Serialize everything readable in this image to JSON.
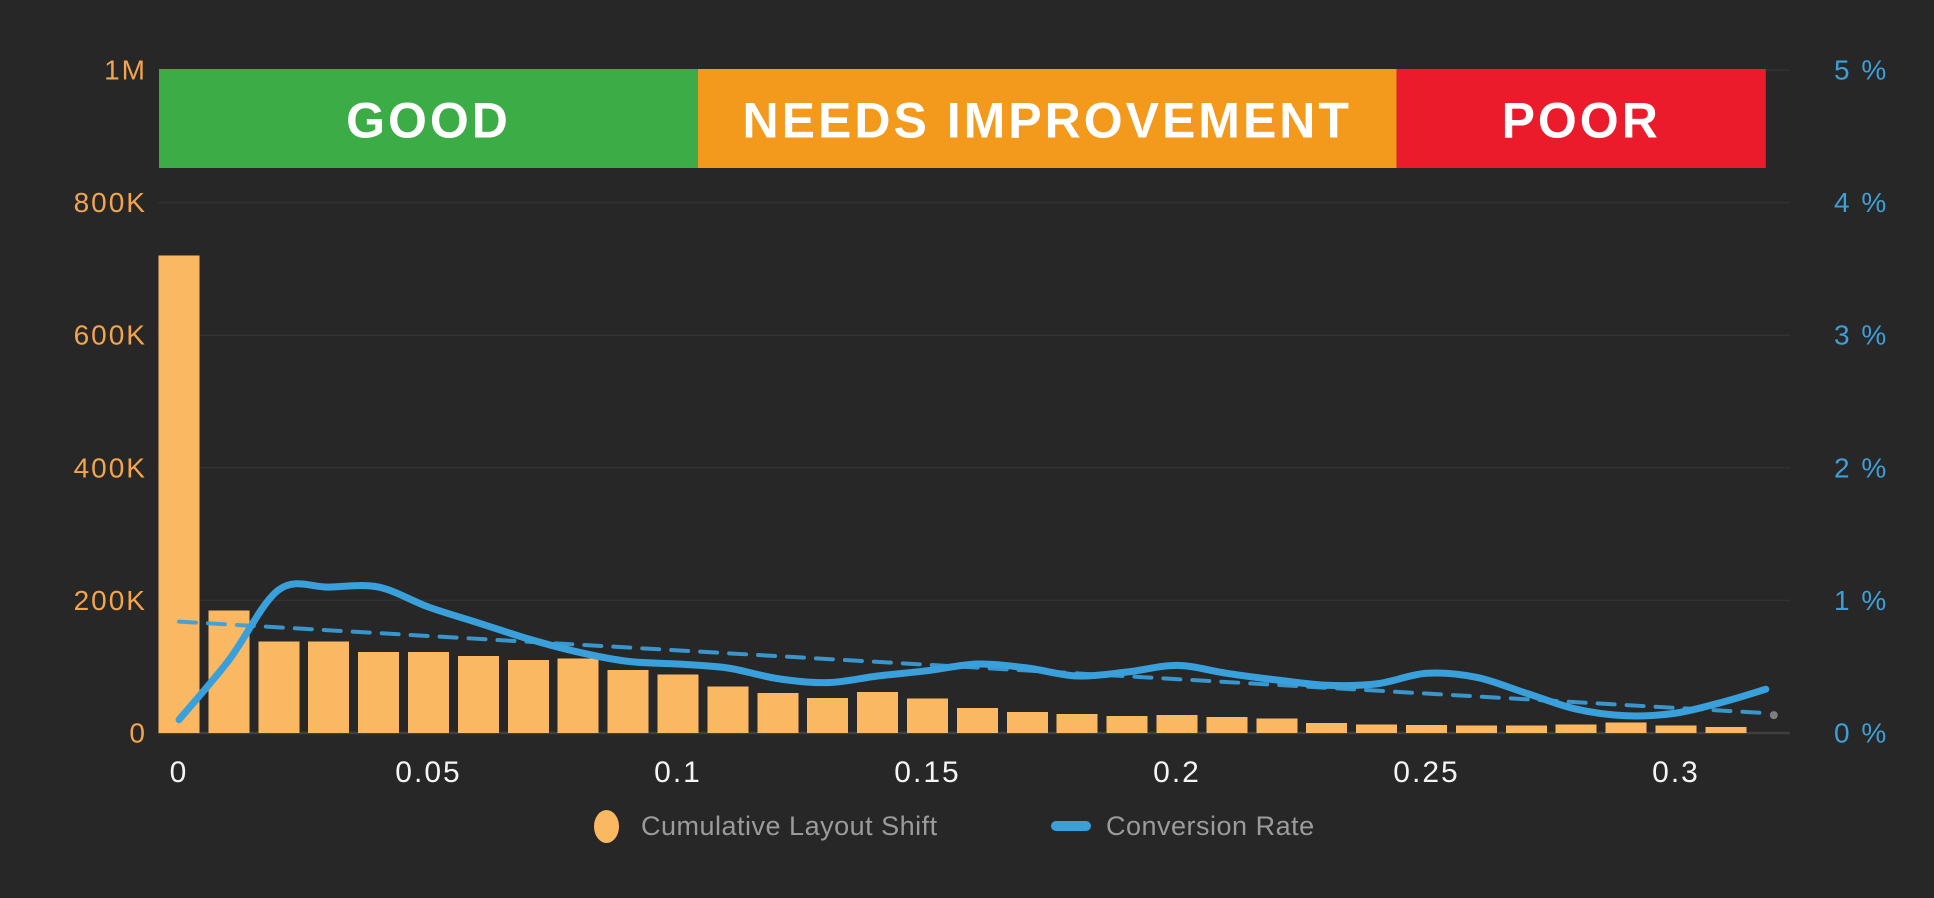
{
  "page": {
    "background": "#272727"
  },
  "chart_data": {
    "type": "bar+line",
    "title": "",
    "x_axis": {
      "label": "",
      "range": [
        -0.004,
        0.318
      ],
      "tick_color": "#F5F5F5",
      "ticks": [
        {
          "value": 0,
          "label": "0"
        },
        {
          "value": 0.05,
          "label": "0.05"
        },
        {
          "value": 0.1,
          "label": "0.1"
        },
        {
          "value": 0.15,
          "label": "0.15"
        },
        {
          "value": 0.2,
          "label": "0.2"
        },
        {
          "value": 0.25,
          "label": "0.25"
        },
        {
          "value": 0.3,
          "label": "0.3"
        }
      ]
    },
    "left_axis": {
      "range": [
        0,
        1000000
      ],
      "tick_color": "#F3A44C",
      "ticks": [
        {
          "value": 0,
          "label": "0"
        },
        {
          "value": 200000,
          "label": "200K"
        },
        {
          "value": 400000,
          "label": "400K"
        },
        {
          "value": 600000,
          "label": "600K"
        },
        {
          "value": 800000,
          "label": "800K"
        },
        {
          "value": 1000000,
          "label": "1M"
        }
      ]
    },
    "right_axis": {
      "range": [
        0,
        5
      ],
      "tick_color": "#3E9FD8",
      "ticks": [
        {
          "value": 0,
          "label": "0 %"
        },
        {
          "value": 1,
          "label": "1 %"
        },
        {
          "value": 2,
          "label": "2 %"
        },
        {
          "value": 3,
          "label": "3 %"
        },
        {
          "value": 4,
          "label": "4 %"
        },
        {
          "value": 5,
          "label": "5 %"
        }
      ]
    },
    "bands": [
      {
        "label": "GOOD",
        "color": "#3CAC47",
        "from": -0.004,
        "to": 0.104
      },
      {
        "label": "NEEDS IMPROVEMENT",
        "color": "#F39A1D",
        "from": 0.104,
        "to": 0.244
      },
      {
        "label": "POOR",
        "color": "#EC1B2B",
        "from": 0.244,
        "to": 0.318
      }
    ],
    "band_text_color": "#FFFFFF",
    "grid": {
      "color": "#323232",
      "baseline_color": "#3F3F3F"
    },
    "series": [
      {
        "name": "Cumulative Layout Shift",
        "type": "bar",
        "axis": "left",
        "color": "#FBB863",
        "x": [
          0,
          0.01,
          0.02,
          0.03,
          0.04,
          0.05,
          0.06,
          0.07,
          0.08,
          0.09,
          0.1,
          0.11,
          0.12,
          0.13,
          0.14,
          0.15,
          0.16,
          0.17,
          0.18,
          0.19,
          0.2,
          0.21,
          0.22,
          0.23,
          0.24,
          0.25,
          0.26,
          0.27,
          0.28,
          0.29,
          0.3,
          0.31
        ],
        "values": [
          720000,
          185000,
          138000,
          138000,
          122000,
          122000,
          116000,
          110000,
          112000,
          95000,
          88000,
          70000,
          60000,
          53000,
          62000,
          52000,
          38000,
          32000,
          29000,
          26000,
          27000,
          24000,
          22000,
          15000,
          13000,
          12000,
          11000,
          11000,
          13000,
          16000,
          11000,
          9000
        ]
      },
      {
        "name": "Conversion Rate",
        "type": "line",
        "axis": "right",
        "color": "#3AA0DB",
        "x": [
          0,
          0.01,
          0.02,
          0.03,
          0.04,
          0.05,
          0.06,
          0.07,
          0.08,
          0.09,
          0.1,
          0.11,
          0.12,
          0.13,
          0.14,
          0.15,
          0.16,
          0.17,
          0.18,
          0.19,
          0.2,
          0.21,
          0.22,
          0.23,
          0.24,
          0.25,
          0.26,
          0.27,
          0.28,
          0.29,
          0.3,
          0.31,
          0.318
        ],
        "values": [
          0.1,
          0.55,
          1.08,
          1.1,
          1.1,
          0.95,
          0.83,
          0.71,
          0.61,
          0.54,
          0.52,
          0.49,
          0.41,
          0.38,
          0.43,
          0.47,
          0.52,
          0.49,
          0.43,
          0.46,
          0.51,
          0.45,
          0.4,
          0.36,
          0.37,
          0.45,
          0.42,
          0.3,
          0.18,
          0.13,
          0.15,
          0.24,
          0.33
        ]
      },
      {
        "name": "Conversion Rate trend",
        "type": "dashed-line",
        "axis": "right",
        "color": "#3AA0DB",
        "x": [
          0,
          0.318
        ],
        "values": [
          0.84,
          0.15
        ],
        "end_dot_color": "#8F8F8F"
      }
    ],
    "legend": [
      {
        "label": "Cumulative Layout Shift",
        "marker": "ellipse",
        "color": "#FBB863"
      },
      {
        "label": "Conversion Rate",
        "marker": "dash",
        "color": "#3AA0DB"
      }
    ],
    "legend_text_color": "#9B9B9B"
  }
}
